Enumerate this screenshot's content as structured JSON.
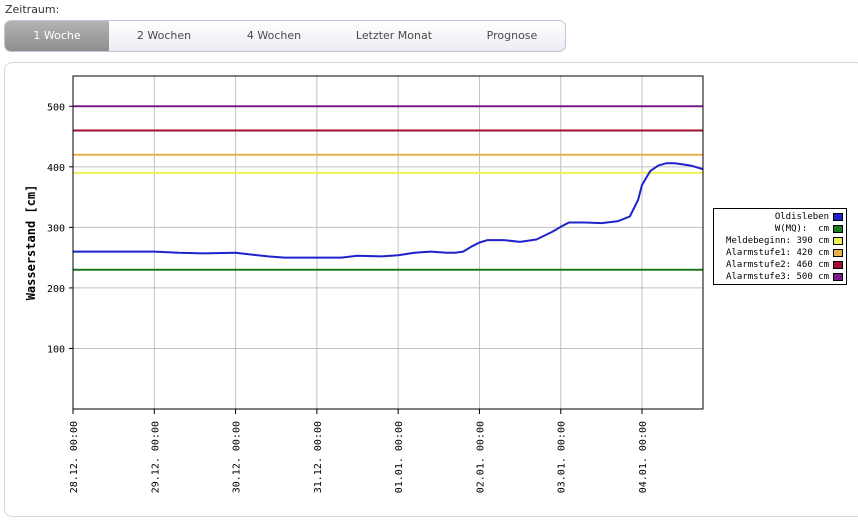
{
  "header": {
    "label": "Zeitraum:"
  },
  "tabs": [
    {
      "label": "1 Woche",
      "active": true
    },
    {
      "label": "2 Wochen",
      "active": false
    },
    {
      "label": "4 Wochen",
      "active": false
    },
    {
      "label": "Letzter Monat",
      "active": false
    },
    {
      "label": "Prognose",
      "active": false
    }
  ],
  "chart_data": {
    "type": "line",
    "ylabel": "Wasserstand [cm]",
    "xlabel": "",
    "ylim": [
      0,
      550
    ],
    "xlim": [
      0,
      7.75
    ],
    "yticks": [
      100,
      200,
      300,
      400,
      500
    ],
    "x_tick_labels": [
      "28.12. 00:00",
      "29.12. 00:00",
      "30.12. 00:00",
      "31.12. 00:00",
      "01.01. 00:00",
      "02.01. 00:00",
      "03.01. 00:00",
      "04.01. 00:00"
    ],
    "series": [
      {
        "name": "Oldisleben",
        "color": "#2020cc",
        "x": [
          0,
          0.5,
          1.0,
          1.3,
          1.6,
          2.0,
          2.2,
          2.4,
          2.6,
          3.0,
          3.3,
          3.5,
          3.8,
          4.0,
          4.2,
          4.4,
          4.6,
          4.7,
          4.8,
          4.9,
          5.0,
          5.1,
          5.3,
          5.5,
          5.7,
          5.9,
          6.0,
          6.1,
          6.3,
          6.5,
          6.7,
          6.85,
          6.95,
          7.0,
          7.1,
          7.2,
          7.3,
          7.4,
          7.5,
          7.6,
          7.75
        ],
        "y": [
          260,
          260,
          260,
          258,
          257,
          258,
          255,
          252,
          250,
          250,
          250,
          253,
          252,
          254,
          258,
          260,
          258,
          258,
          260,
          268,
          275,
          279,
          279,
          276,
          280,
          293,
          301,
          308,
          308,
          307,
          310,
          318,
          345,
          370,
          393,
          402,
          406,
          406,
          404,
          402,
          396
        ]
      },
      {
        "name": "W(MQ):  cm",
        "color": "#1c7a1c",
        "constant": 230
      },
      {
        "name": "Meldebeginn: 390 cm",
        "color": "#eeee55",
        "constant": 390
      },
      {
        "name": "Alarmstufe1: 420 cm",
        "color": "#e8b24a",
        "constant": 420
      },
      {
        "name": "Alarmstufe2: 460 cm",
        "color": "#a01030",
        "constant": 460
      },
      {
        "name": "Alarmstufe3: 500 cm",
        "color": "#7a1a8a",
        "constant": 500
      }
    ],
    "legend_position": "right"
  }
}
